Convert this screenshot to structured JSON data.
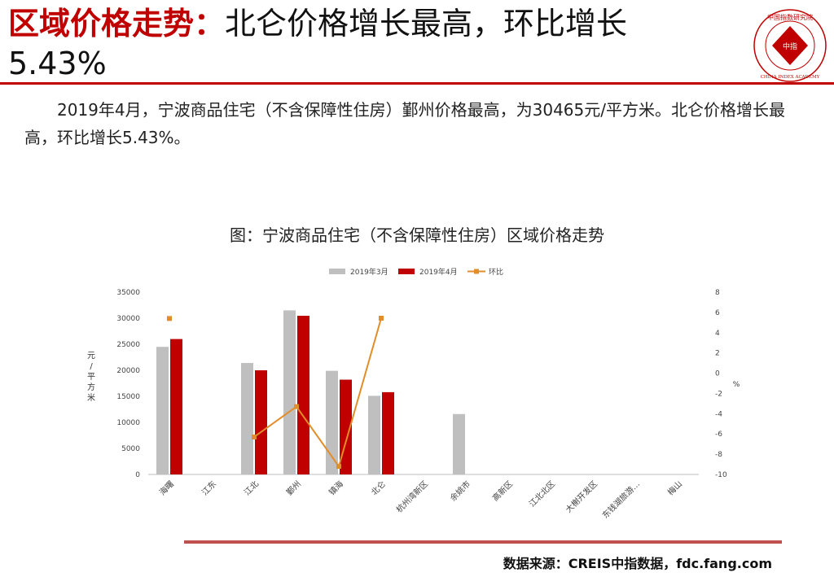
{
  "header": {
    "title_highlight": "区域价格走势：",
    "title_rest": "北仑价格增长最高，环比增长",
    "title_line2": "5.43%"
  },
  "logo": {
    "text_top": "中国指数研究院",
    "text_center": "中指",
    "text_bottom": "CHINA INDEX ACADEMY"
  },
  "body": {
    "paragraph": "2019年4月，宁波商品住宅（不含保障性住房）鄞州价格最高，为30465元/平方米。北仑价格增长最高，环比增长5.43%。"
  },
  "chart_caption": "图：宁波商品住宅（不含保障性住房）区域价格走势",
  "chart_data": {
    "type": "bar",
    "categories": [
      "海曙",
      "江东",
      "江北",
      "鄞州",
      "镇海",
      "北仑",
      "杭州湾新区",
      "余姚市",
      "高新区",
      "江北北区",
      "大榭开发区",
      "东钱湖旅游…",
      "梅山"
    ],
    "series": [
      {
        "name": "2019年3月",
        "type": "bar",
        "color": "#bfbfbf",
        "values": [
          24500,
          null,
          21400,
          31500,
          19900,
          15100,
          null,
          11600,
          null,
          null,
          null,
          null,
          null
        ]
      },
      {
        "name": "2019年4月",
        "type": "bar",
        "color": "#c00000",
        "values": [
          26000,
          null,
          20000,
          30465,
          18200,
          15800,
          null,
          null,
          null,
          null,
          null,
          null,
          null
        ]
      },
      {
        "name": "环比",
        "type": "line",
        "axis": "right",
        "color": "#e38c2a",
        "values": [
          5.4,
          null,
          -6.3,
          -3.3,
          -9.2,
          5.43,
          null,
          null,
          null,
          null,
          null,
          null,
          null
        ]
      }
    ],
    "ylabel": "元/平方米",
    "ylabel_right": "%",
    "ylim": [
      0,
      35000
    ],
    "yticks": [
      0,
      5000,
      10000,
      15000,
      20000,
      25000,
      30000,
      35000
    ],
    "ylim_right": [
      -10,
      8
    ],
    "yticks_right": [
      -10,
      -8,
      -6,
      -4,
      -2,
      0,
      2,
      4,
      6,
      8
    ],
    "legend_position": "top",
    "grid": false
  },
  "footer": {
    "source": "数据来源：CREIS中指数据，fdc.fang.com"
  },
  "colors": {
    "accent": "#c00000",
    "bar_march": "#bfbfbf",
    "bar_april": "#c00000",
    "line_mom": "#e38c2a"
  }
}
